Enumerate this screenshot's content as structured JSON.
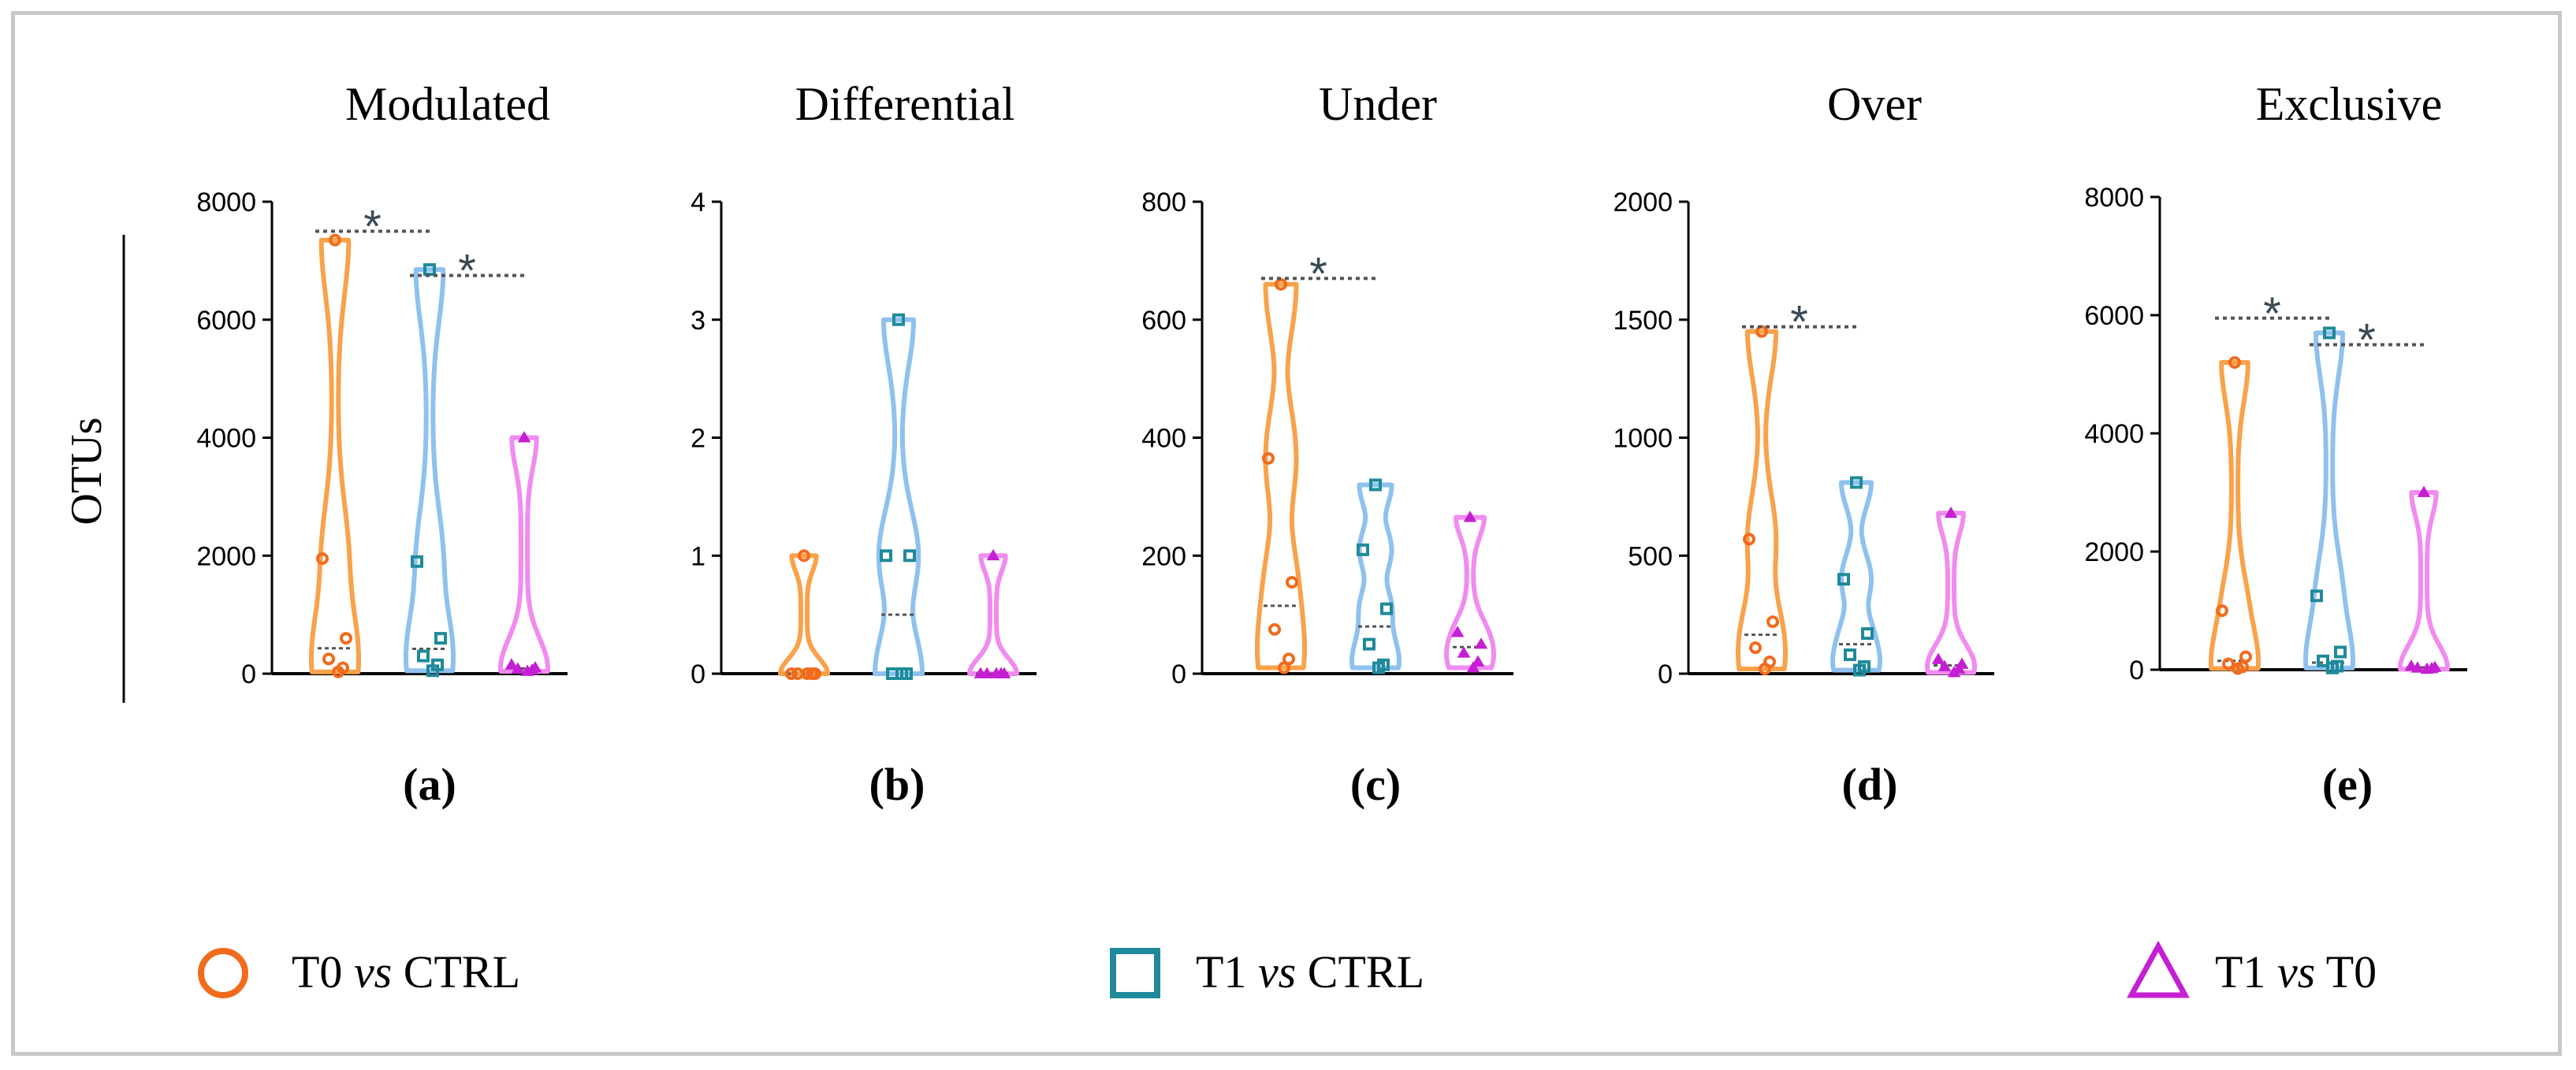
{
  "chart_data": {
    "type": "violin",
    "ylabel": "OTUs",
    "groups": [
      "T0 vs CTRL",
      "T1 vs CTRL",
      "T1 vs T0"
    ],
    "colors": {
      "T0 vs CTRL": {
        "fill": "#f9a24a",
        "marker": "#f26b1d"
      },
      "T1 vs CTRL": {
        "fill": "#8fc1ef",
        "marker": "#1f8a9a"
      },
      "T1 vs T0": {
        "fill": "#f08bf0",
        "marker": "#c41fd2"
      }
    },
    "markers": {
      "T0 vs CTRL": "circle",
      "T1 vs CTRL": "square",
      "T1 vs T0": "triangle"
    },
    "legend": [
      {
        "marker": "circle",
        "prefix": "T0 ",
        "italic": "vs",
        "suffix": " CTRL"
      },
      {
        "marker": "square",
        "prefix": "T1 ",
        "italic": "vs",
        "suffix": " CTRL"
      },
      {
        "marker": "triangle",
        "prefix": "T1 ",
        "italic": "vs",
        "suffix": " T0"
      }
    ],
    "panels": [
      {
        "letter": "(a)",
        "title": "Modulated",
        "ylim": [
          0,
          8000
        ],
        "yticks": [
          "0",
          "2000",
          "4000",
          "6000",
          "8000"
        ],
        "ytick_values": [
          0,
          2000,
          4000,
          6000,
          8000
        ],
        "series": [
          {
            "group": "T0 vs CTRL",
            "points": [
              7350,
              1950,
              600,
              250,
              100,
              30
            ],
            "median": 430
          },
          {
            "group": "T1 vs CTRL",
            "points": [
              6850,
              1900,
              600,
              300,
              150,
              50
            ],
            "median": 420
          },
          {
            "group": "T1 vs T0",
            "points": [
              4000,
              150,
              100,
              80,
              60,
              40
            ],
            "median": 90
          }
        ],
        "significance": [
          {
            "from": 0,
            "to": 1,
            "y": 7500,
            "label": "*"
          },
          {
            "from": 1,
            "to": 2,
            "y": 6750,
            "label": "*"
          }
        ]
      },
      {
        "letter": "(b)",
        "title": "Differential",
        "ylim": [
          0,
          4
        ],
        "yticks": [
          "0",
          "1",
          "2",
          "3",
          "4"
        ],
        "ytick_values": [
          0,
          1,
          2,
          3,
          4
        ],
        "series": [
          {
            "group": "T0 vs CTRL",
            "points": [
              1,
              0,
              0,
              0,
              0,
              0
            ],
            "median": 0
          },
          {
            "group": "T1 vs CTRL",
            "points": [
              3,
              1,
              1,
              0,
              0,
              0
            ],
            "median": 0.5
          },
          {
            "group": "T1 vs T0",
            "points": [
              1,
              0,
              0,
              0,
              0,
              0
            ],
            "median": 0
          }
        ],
        "significance": []
      },
      {
        "letter": "(c)",
        "title": "Under",
        "ylim": [
          0,
          800
        ],
        "yticks": [
          "0",
          "200",
          "400",
          "600",
          "800"
        ],
        "ytick_values": [
          0,
          200,
          400,
          600,
          800
        ],
        "series": [
          {
            "group": "T0 vs CTRL",
            "points": [
              660,
              365,
              155,
              75,
              25,
              10
            ],
            "median": 115
          },
          {
            "group": "T1 vs CTRL",
            "points": [
              320,
              210,
              110,
              50,
              15,
              10
            ],
            "median": 80
          },
          {
            "group": "T1 vs T0",
            "points": [
              265,
              70,
              50,
              35,
              20,
              10
            ],
            "median": 45
          }
        ],
        "significance": [
          {
            "from": 0,
            "to": 1,
            "y": 670,
            "label": "*"
          }
        ]
      },
      {
        "letter": "(d)",
        "title": "Over",
        "ylim": [
          0,
          2000
        ],
        "yticks": [
          "0",
          "500",
          "1000",
          "1500",
          "2000"
        ],
        "ytick_values": [
          0,
          500,
          1000,
          1500,
          2000
        ],
        "series": [
          {
            "group": "T0 vs CTRL",
            "points": [
              1450,
              570,
              220,
              110,
              50,
              20
            ],
            "median": 165
          },
          {
            "group": "T1 vs CTRL",
            "points": [
              810,
              400,
              170,
              80,
              30,
              15
            ],
            "median": 125
          },
          {
            "group": "T1 vs T0",
            "points": [
              680,
              60,
              40,
              30,
              20,
              5
            ],
            "median": 35
          }
        ],
        "significance": [
          {
            "from": 0,
            "to": 1,
            "y": 1470,
            "label": "*"
          }
        ]
      },
      {
        "letter": "(e)",
        "title": "Exclusive",
        "ylim": [
          0,
          8000
        ],
        "yticks": [
          "0",
          "2000",
          "4000",
          "6000",
          "8000"
        ],
        "ytick_values": [
          0,
          2000,
          4000,
          6000,
          8000
        ],
        "series": [
          {
            "group": "T0 vs CTRL",
            "points": [
              5200,
              1000,
              220,
              100,
              50,
              20
            ],
            "median": 150
          },
          {
            "group": "T1 vs CTRL",
            "points": [
              5700,
              1250,
              300,
              150,
              60,
              30
            ],
            "median": 120
          },
          {
            "group": "T1 vs T0",
            "points": [
              3000,
              60,
              40,
              30,
              20,
              10
            ],
            "median": 40
          }
        ],
        "significance": [
          {
            "from": 0,
            "to": 1,
            "y": 5950,
            "label": "*"
          },
          {
            "from": 1,
            "to": 2,
            "y": 5500,
            "label": "*"
          }
        ]
      }
    ]
  }
}
